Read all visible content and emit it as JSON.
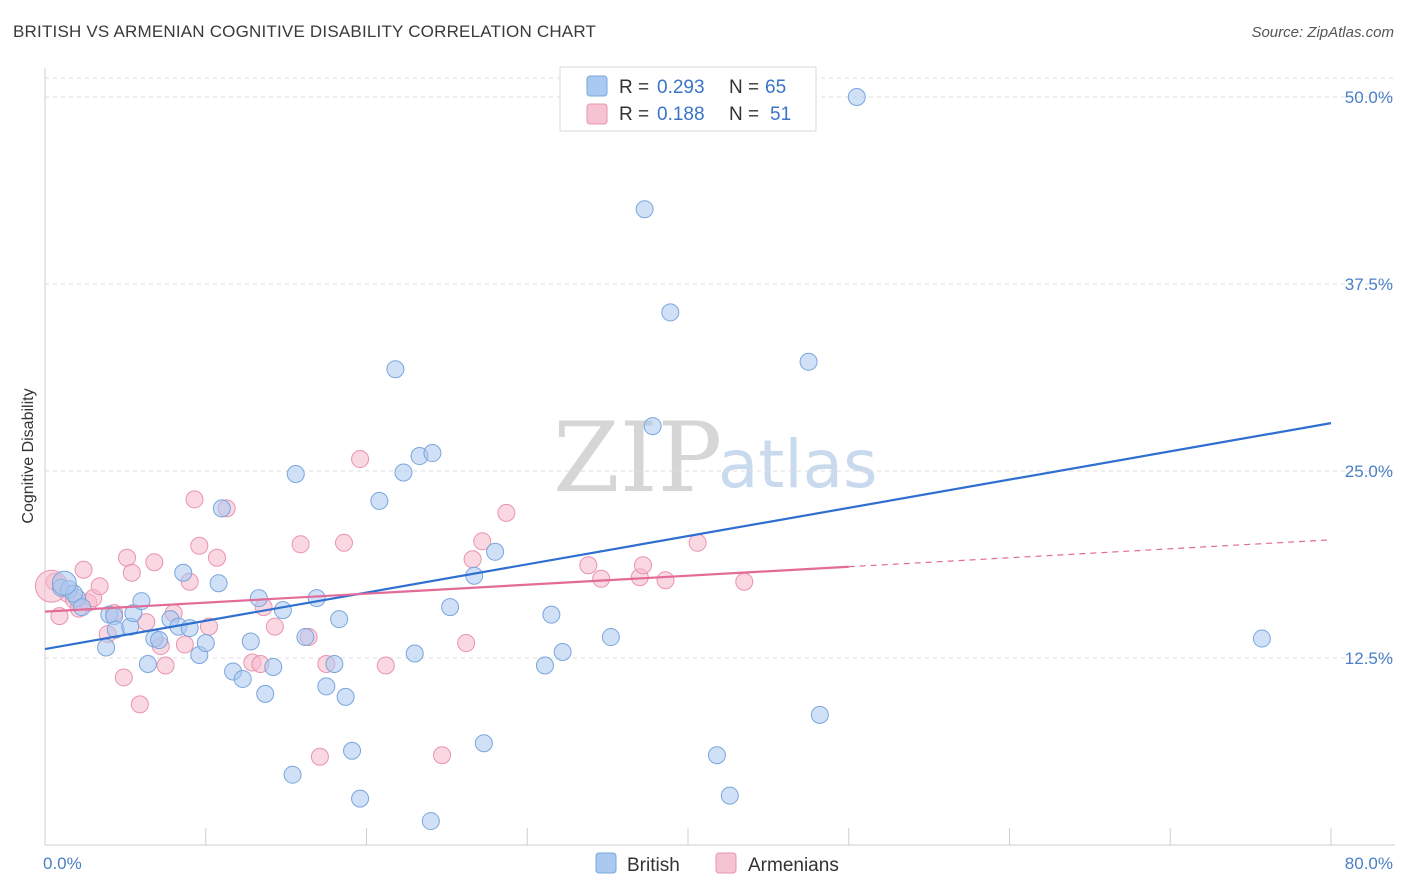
{
  "header": {
    "title": "BRITISH VS ARMENIAN COGNITIVE DISABILITY CORRELATION CHART",
    "source": "Source: ZipAtlas.com"
  },
  "watermark": {
    "zip": "ZIP",
    "atlas": "atlas"
  },
  "legend": {
    "british": {
      "r_label": "R =",
      "r_value": "0.293",
      "n_label": "N =",
      "n_value": "65"
    },
    "armenians": {
      "r_label": "R =",
      "r_value": "0.188",
      "n_label": "N =",
      "n_value": "51"
    }
  },
  "bottom_legend": {
    "british": "British",
    "armenians": "Armenians"
  },
  "colors": {
    "british_fill": "#a9c9f0",
    "british_stroke": "#7aa6dc",
    "british_line": "#2f6fd0",
    "armenians_fill": "#f6b8cb",
    "armenians_stroke": "#e993b0",
    "armenians_line": "#e26b98",
    "grid": "#dddddd",
    "tick_text": "#4a7fc7"
  },
  "chart_data": {
    "type": "scatter",
    "title": "BRITISH VS ARMENIAN COGNITIVE DISABILITY CORRELATION CHART",
    "xlabel": "",
    "ylabel": "Cognitive Disability",
    "xlim": [
      0,
      80
    ],
    "ylim": [
      0,
      50
    ],
    "x_tick_labels": [
      "0.0%",
      "80.0%"
    ],
    "y_ticks": [
      12.5,
      25.0,
      37.5,
      50.0
    ],
    "y_tick_labels": [
      "12.5%",
      "25.0%",
      "37.5%",
      "50.0%"
    ],
    "grid": true,
    "legend_position": "top-center",
    "series": [
      {
        "name": "British",
        "color": "#a9c9f0",
        "trend": {
          "x": [
            0,
            80
          ],
          "y": [
            13.1,
            28.2
          ]
        },
        "points": [
          [
            1.0,
            17.2
          ],
          [
            1.5,
            17.1
          ],
          [
            2.0,
            16.5
          ],
          [
            1.8,
            16.8
          ],
          [
            2.3,
            15.9
          ],
          [
            4.0,
            15.4
          ],
          [
            4.3,
            15.3
          ],
          [
            3.8,
            13.2
          ],
          [
            4.4,
            14.4
          ],
          [
            5.3,
            14.6
          ],
          [
            5.5,
            15.5
          ],
          [
            6.0,
            16.3
          ],
          [
            6.4,
            12.1
          ],
          [
            6.8,
            13.8
          ],
          [
            7.1,
            13.7
          ],
          [
            7.8,
            15.1
          ],
          [
            8.3,
            14.6
          ],
          [
            8.6,
            18.2
          ],
          [
            9.0,
            14.5
          ],
          [
            9.6,
            12.7
          ],
          [
            10.0,
            13.5
          ],
          [
            10.8,
            17.5
          ],
          [
            11.0,
            22.5
          ],
          [
            11.7,
            11.6
          ],
          [
            12.3,
            11.1
          ],
          [
            12.8,
            13.6
          ],
          [
            13.3,
            16.5
          ],
          [
            13.7,
            10.1
          ],
          [
            14.2,
            11.9
          ],
          [
            14.8,
            15.7
          ],
          [
            15.4,
            4.7
          ],
          [
            15.6,
            24.8
          ],
          [
            16.2,
            13.9
          ],
          [
            16.9,
            16.5
          ],
          [
            17.5,
            10.6
          ],
          [
            18.0,
            12.1
          ],
          [
            18.3,
            15.1
          ],
          [
            18.7,
            9.9
          ],
          [
            19.1,
            6.3
          ],
          [
            19.6,
            3.1
          ],
          [
            20.8,
            23.0
          ],
          [
            21.8,
            31.8
          ],
          [
            22.3,
            24.9
          ],
          [
            23.0,
            12.8
          ],
          [
            23.3,
            26.0
          ],
          [
            24.1,
            26.2
          ],
          [
            24.0,
            1.6
          ],
          [
            25.2,
            15.9
          ],
          [
            26.7,
            18.0
          ],
          [
            27.3,
            6.8
          ],
          [
            28.0,
            19.6
          ],
          [
            31.1,
            12.0
          ],
          [
            31.5,
            15.4
          ],
          [
            32.2,
            12.9
          ],
          [
            35.2,
            13.9
          ],
          [
            37.3,
            42.5
          ],
          [
            37.8,
            28.0
          ],
          [
            38.9,
            35.6
          ],
          [
            41.8,
            6.0
          ],
          [
            42.6,
            3.3
          ],
          [
            47.5,
            32.3
          ],
          [
            48.2,
            8.7
          ],
          [
            50.5,
            50.0
          ],
          [
            75.7,
            13.8
          ],
          [
            1.2,
            17.5
          ]
        ]
      },
      {
        "name": "Armenians",
        "color": "#f6b8cb",
        "trend": {
          "x": [
            0,
            50
          ],
          "y": [
            15.6,
            18.6
          ]
        },
        "trend_dashed": {
          "x": [
            50,
            80
          ],
          "y": [
            18.6,
            20.4
          ]
        },
        "points": [
          [
            0.6,
            17.6
          ],
          [
            0.9,
            15.3
          ],
          [
            1.4,
            16.8
          ],
          [
            1.8,
            16.4
          ],
          [
            2.1,
            15.8
          ],
          [
            2.4,
            18.4
          ],
          [
            2.7,
            16.2
          ],
          [
            3.0,
            16.5
          ],
          [
            3.4,
            17.3
          ],
          [
            3.9,
            14.1
          ],
          [
            4.3,
            15.5
          ],
          [
            4.9,
            11.2
          ],
          [
            5.1,
            19.2
          ],
          [
            5.4,
            18.2
          ],
          [
            5.9,
            9.4
          ],
          [
            6.3,
            14.9
          ],
          [
            6.8,
            18.9
          ],
          [
            7.2,
            13.3
          ],
          [
            7.5,
            12.0
          ],
          [
            8.0,
            15.5
          ],
          [
            8.7,
            13.4
          ],
          [
            9.0,
            17.6
          ],
          [
            9.3,
            23.1
          ],
          [
            9.6,
            20.0
          ],
          [
            10.2,
            14.6
          ],
          [
            10.7,
            19.2
          ],
          [
            11.3,
            22.5
          ],
          [
            12.9,
            12.2
          ],
          [
            13.4,
            12.1
          ],
          [
            13.6,
            15.9
          ],
          [
            14.3,
            14.6
          ],
          [
            15.9,
            20.1
          ],
          [
            16.4,
            13.9
          ],
          [
            17.1,
            5.9
          ],
          [
            17.5,
            12.1
          ],
          [
            18.6,
            20.2
          ],
          [
            19.6,
            25.8
          ],
          [
            21.2,
            12.0
          ],
          [
            24.7,
            6.0
          ],
          [
            26.2,
            13.5
          ],
          [
            26.6,
            19.1
          ],
          [
            27.2,
            20.3
          ],
          [
            28.7,
            22.2
          ],
          [
            33.8,
            18.7
          ],
          [
            34.6,
            17.8
          ],
          [
            37.0,
            17.9
          ],
          [
            37.2,
            18.7
          ],
          [
            38.6,
            17.7
          ],
          [
            40.6,
            20.2
          ],
          [
            43.5,
            17.6
          ],
          [
            0.4,
            17.3
          ]
        ]
      }
    ]
  }
}
